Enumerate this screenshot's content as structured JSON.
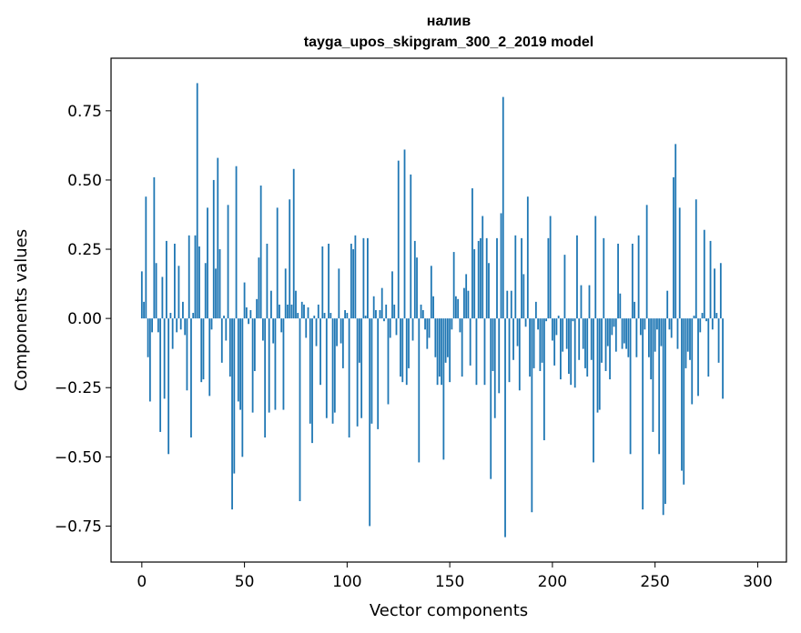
{
  "chart_data": {
    "type": "bar",
    "title": "налив",
    "subtitle": "tayga_upos_skipgram_300_2_2019 model",
    "xlabel": "Vector components",
    "ylabel": "Components values",
    "xlim": [
      -15,
      314
    ],
    "ylim": [
      -0.88,
      0.94
    ],
    "x_ticks": [
      0,
      50,
      100,
      150,
      200,
      250,
      300
    ],
    "x_tick_labels": [
      "0",
      "50",
      "100",
      "150",
      "200",
      "250",
      "300"
    ],
    "y_ticks": [
      -0.75,
      -0.5,
      -0.25,
      0.0,
      0.25,
      0.5,
      0.75
    ],
    "y_tick_labels": [
      "−0.75",
      "−0.50",
      "−0.25",
      "0.00",
      "0.25",
      "0.50",
      "0.75"
    ],
    "grid": false,
    "bar_color": "#1f77b4",
    "bar_width": 0.8,
    "x_start": 0,
    "values": [
      0.17,
      0.06,
      0.44,
      -0.14,
      -0.3,
      -0.05,
      0.51,
      0.2,
      -0.05,
      -0.41,
      0.15,
      -0.29,
      0.28,
      -0.49,
      0.02,
      -0.11,
      0.27,
      -0.05,
      0.19,
      -0.04,
      0.06,
      -0.06,
      -0.26,
      0.3,
      -0.43,
      0.02,
      0.3,
      0.85,
      0.26,
      -0.23,
      -0.22,
      0.2,
      0.4,
      -0.28,
      -0.04,
      0.5,
      0.18,
      0.58,
      0.25,
      -0.16,
      0.01,
      -0.08,
      0.41,
      -0.21,
      -0.69,
      -0.56,
      0.55,
      -0.3,
      -0.33,
      -0.5,
      0.13,
      0.04,
      -0.02,
      0.03,
      -0.34,
      -0.19,
      0.07,
      0.22,
      0.48,
      -0.08,
      -0.43,
      0.27,
      -0.34,
      0.1,
      -0.09,
      -0.33,
      0.4,
      0.05,
      -0.05,
      -0.33,
      0.18,
      0.05,
      0.43,
      0.05,
      0.54,
      0.1,
      0.02,
      -0.66,
      0.06,
      0.05,
      -0.07,
      0.04,
      -0.38,
      -0.45,
      0.01,
      -0.1,
      0.05,
      -0.24,
      0.26,
      0.02,
      -0.36,
      0.27,
      0.02,
      -0.38,
      -0.34,
      -0.1,
      0.18,
      -0.09,
      -0.18,
      0.03,
      0.02,
      -0.43,
      0.27,
      0.25,
      0.3,
      -0.39,
      -0.16,
      -0.36,
      0.29,
      0.01,
      0.29,
      -0.75,
      -0.38,
      0.08,
      0.03,
      -0.4,
      0.03,
      0.11,
      -0.01,
      0.05,
      -0.31,
      -0.07,
      0.17,
      0.05,
      -0.06,
      0.57,
      -0.21,
      -0.23,
      0.61,
      -0.24,
      -0.18,
      0.52,
      -0.08,
      0.28,
      0.22,
      -0.52,
      0.05,
      0.03,
      -0.04,
      -0.11,
      -0.07,
      0.19,
      0.08,
      -0.14,
      -0.24,
      -0.21,
      -0.24,
      -0.51,
      -0.16,
      -0.14,
      -0.23,
      -0.04,
      0.24,
      0.08,
      0.07,
      -0.05,
      -0.21,
      0.11,
      0.16,
      0.1,
      -0.17,
      0.47,
      0.25,
      -0.24,
      0.28,
      0.29,
      0.37,
      -0.24,
      0.29,
      0.2,
      -0.58,
      -0.19,
      -0.36,
      0.29,
      -0.27,
      0.38,
      0.8,
      -0.79,
      0.1,
      -0.23,
      0.1,
      -0.15,
      0.3,
      -0.1,
      -0.26,
      0.29,
      0.16,
      -0.03,
      0.44,
      -0.21,
      -0.7,
      -0.18,
      0.06,
      -0.04,
      -0.19,
      -0.16,
      -0.44,
      -0.01,
      0.29,
      0.37,
      -0.08,
      -0.17,
      -0.06,
      0.01,
      -0.22,
      -0.12,
      0.23,
      -0.11,
      -0.2,
      -0.24,
      -0.01,
      -0.25,
      0.3,
      -0.15,
      0.12,
      -0.11,
      -0.18,
      -0.21,
      0.12,
      -0.15,
      -0.52,
      0.37,
      -0.34,
      -0.33,
      -0.16,
      0.29,
      -0.19,
      -0.1,
      -0.22,
      -0.06,
      -0.03,
      -0.12,
      0.27,
      0.09,
      -0.11,
      -0.09,
      -0.11,
      -0.14,
      -0.49,
      0.27,
      0.06,
      -0.14,
      0.3,
      -0.06,
      -0.69,
      -0.04,
      0.41,
      -0.14,
      -0.22,
      -0.41,
      -0.12,
      -0.04,
      -0.49,
      -0.1,
      -0.71,
      -0.67,
      0.1,
      -0.04,
      -0.07,
      0.51,
      0.63,
      -0.11,
      0.4,
      -0.55,
      -0.6,
      -0.18,
      -0.12,
      -0.15,
      -0.31,
      0.01,
      0.43,
      -0.28,
      -0.05,
      0.02,
      0.32,
      -0.01,
      -0.21,
      0.28,
      -0.04,
      0.18,
      0.02,
      -0.16,
      0.2,
      -0.29
    ]
  }
}
